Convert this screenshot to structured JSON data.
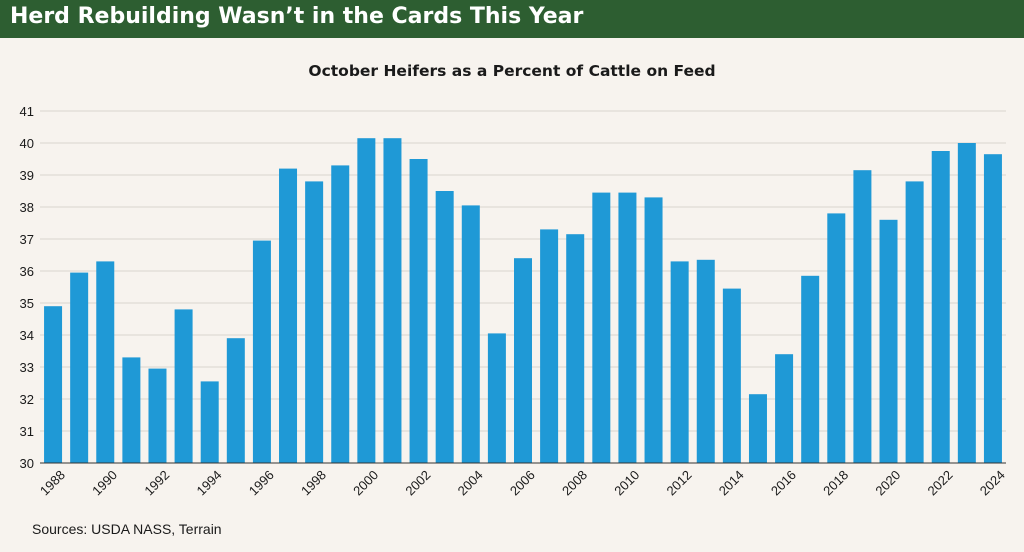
{
  "header": {
    "title": "Herd Rebuilding Wasn’t in the Cards This Year"
  },
  "colors": {
    "header_bg": "#2d5e31",
    "bar": "#1f99d6",
    "page_bg": "#f7f3ee",
    "grid": "#d9d4ce"
  },
  "chart_data": {
    "type": "bar",
    "title": "October Heifers as a Percent of Cattle on Feed",
    "xlabel": "",
    "ylabel": "",
    "ylim": [
      30,
      41
    ],
    "yticks": [
      30,
      31,
      32,
      33,
      34,
      35,
      36,
      37,
      38,
      39,
      40,
      41
    ],
    "grid": true,
    "categories": [
      "1988",
      "1989",
      "1990",
      "1991",
      "1992",
      "1993",
      "1994",
      "1995",
      "1996",
      "1997",
      "1998",
      "1999",
      "2000",
      "2001",
      "2002",
      "2003",
      "2004",
      "2005",
      "2006",
      "2007",
      "2008",
      "2009",
      "2010",
      "2011",
      "2012",
      "2013",
      "2014",
      "2015",
      "2016",
      "2017",
      "2018",
      "2019",
      "2020",
      "2021",
      "2022",
      "2023",
      "2024"
    ],
    "xtick_labels": [
      "1988",
      "1990",
      "1992",
      "1994",
      "1996",
      "1998",
      "2000",
      "2002",
      "2004",
      "2006",
      "2008",
      "2010",
      "2012",
      "2014",
      "2016",
      "2018",
      "2020",
      "2022",
      "2024"
    ],
    "values": [
      34.9,
      35.95,
      36.3,
      33.3,
      32.95,
      34.8,
      32.55,
      33.9,
      36.95,
      39.2,
      38.8,
      39.3,
      40.15,
      40.15,
      39.5,
      38.5,
      38.05,
      34.05,
      36.4,
      37.3,
      37.15,
      38.45,
      38.45,
      38.3,
      36.3,
      36.35,
      35.45,
      32.15,
      33.4,
      35.85,
      37.8,
      39.15,
      37.6,
      38.8,
      39.75,
      40.0,
      39.65
    ]
  },
  "footer": {
    "source": "Sources: USDA NASS, Terrain"
  }
}
